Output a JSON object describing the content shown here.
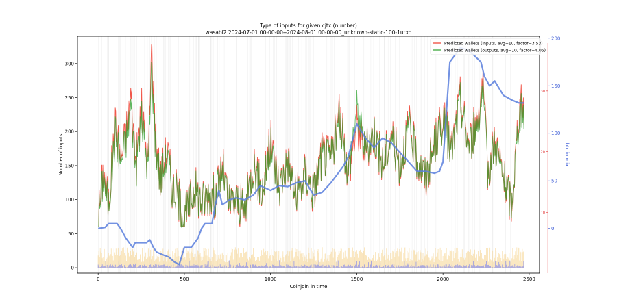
{
  "chart_data": {
    "type": "line",
    "title": "Type of inputs for given cjtx (number)",
    "subtitle": "wasabi2 2024-07-01 00-00-00--2024-08-01 00-00-00_unknown-static-100-1utxo",
    "xlabel": "Coinjoin in time",
    "ylabel": "Number of inputs",
    "y2label": "btc in mix",
    "xlim": [
      -120,
      2560
    ],
    "ylim": [
      -8,
      340
    ],
    "y2lim": [
      -47,
      202
    ],
    "y3lim": [
      0,
      39
    ],
    "xticks": [
      "0",
      "500",
      "1000",
      "1500",
      "2000",
      "2500"
    ],
    "yticks": [
      "0",
      "50",
      "100",
      "150",
      "200",
      "250",
      "300"
    ],
    "y2ticks": [
      "0",
      "50",
      "100",
      "150",
      "200"
    ],
    "y3ticks": [
      "10",
      "20",
      "30"
    ],
    "legend_position": "top-right",
    "colors": {
      "inputs": "#ee3a2a",
      "outputs": "#2ca02c",
      "btc": "#5b7fdd",
      "y2axis": "#3b5bd6",
      "y3axis": "#e03030",
      "background_yellow": "#f6d28a",
      "background_blue": "#7f86ee"
    },
    "series": [
      {
        "name": "Predicted wallets (inputs, avg=10, factor=3.53)",
        "x": [
          0,
          30,
          60,
          100,
          130,
          160,
          190,
          220,
          250,
          290,
          310,
          330,
          360,
          400,
          430,
          460,
          500,
          560,
          600,
          640,
          680,
          720,
          760,
          800,
          850,
          900,
          950,
          1000,
          1050,
          1100,
          1150,
          1200,
          1250,
          1300,
          1350,
          1400,
          1450,
          1500,
          1550,
          1600,
          1650,
          1700,
          1750,
          1800,
          1850,
          1900,
          1950,
          2000,
          2050,
          2100,
          2150,
          2200,
          2230,
          2260,
          2300,
          2350,
          2400,
          2440,
          2470
        ],
        "values": [
          72,
          143,
          95,
          210,
          160,
          195,
          255,
          150,
          235,
          150,
          325,
          200,
          130,
          175,
          120,
          110,
          70,
          120,
          95,
          110,
          105,
          150,
          90,
          100,
          80,
          155,
          110,
          185,
          120,
          160,
          100,
          140,
          110,
          170,
          160,
          225,
          140,
          210,
          170,
          200,
          150,
          200,
          150,
          210,
          160,
          130,
          180,
          220,
          170,
          250,
          180,
          220,
          270,
          140,
          190,
          130,
          90,
          230,
          240
        ]
      },
      {
        "name": "Predicted wallets (outputs, avg=10, factor=4.05)",
        "x": [
          0,
          30,
          60,
          100,
          130,
          160,
          190,
          220,
          250,
          290,
          310,
          330,
          360,
          400,
          430,
          460,
          500,
          560,
          600,
          640,
          680,
          720,
          760,
          800,
          850,
          900,
          950,
          1000,
          1050,
          1100,
          1150,
          1200,
          1250,
          1300,
          1350,
          1400,
          1450,
          1500,
          1550,
          1600,
          1650,
          1700,
          1750,
          1800,
          1850,
          1900,
          1950,
          2000,
          2050,
          2100,
          2150,
          2200,
          2230,
          2260,
          2300,
          2350,
          2400,
          2440,
          2470
        ],
        "values": [
          70,
          135,
          92,
          200,
          155,
          185,
          240,
          145,
          220,
          145,
          300,
          190,
          128,
          165,
          118,
          108,
          72,
          118,
          95,
          110,
          105,
          145,
          92,
          100,
          82,
          150,
          110,
          178,
          118,
          158,
          100,
          138,
          112,
          165,
          160,
          218,
          140,
          235,
          172,
          200,
          150,
          195,
          150,
          205,
          160,
          132,
          178,
          215,
          168,
          245,
          178,
          215,
          260,
          140,
          185,
          130,
          92,
          222,
          230
        ]
      },
      {
        "name": "btc in mix",
        "axis": "y2",
        "x": [
          0,
          40,
          60,
          110,
          130,
          160,
          180,
          200,
          215,
          260,
          280,
          300,
          320,
          340,
          380,
          410,
          440,
          470,
          500,
          540,
          580,
          600,
          620,
          660,
          680,
          700,
          720,
          760,
          800,
          850,
          900,
          940,
          1000,
          1050,
          1100,
          1150,
          1200,
          1250,
          1300,
          1350,
          1400,
          1420,
          1450,
          1500,
          1550,
          1600,
          1650,
          1700,
          1750,
          1800,
          1850,
          1900,
          1950,
          1980,
          2000,
          2040,
          2060,
          2100,
          2140,
          2180,
          2220,
          2240,
          2270,
          2300,
          2350,
          2400,
          2440,
          2470
        ],
        "values": [
          0,
          1,
          5,
          5,
          0,
          -10,
          -15,
          -20,
          -15,
          -15,
          -15,
          -12,
          -20,
          -25,
          -28,
          -30,
          -35,
          -38,
          -20,
          -20,
          -10,
          0,
          5,
          5,
          25,
          40,
          25,
          30,
          32,
          30,
          35,
          45,
          40,
          45,
          44,
          48,
          50,
          35,
          38,
          48,
          60,
          65,
          75,
          110,
          95,
          85,
          95,
          90,
          80,
          70,
          60,
          60,
          58,
          60,
          70,
          175,
          180,
          190,
          188,
          182,
          175,
          160,
          150,
          155,
          140,
          135,
          132,
          132
        ]
      }
    ]
  }
}
